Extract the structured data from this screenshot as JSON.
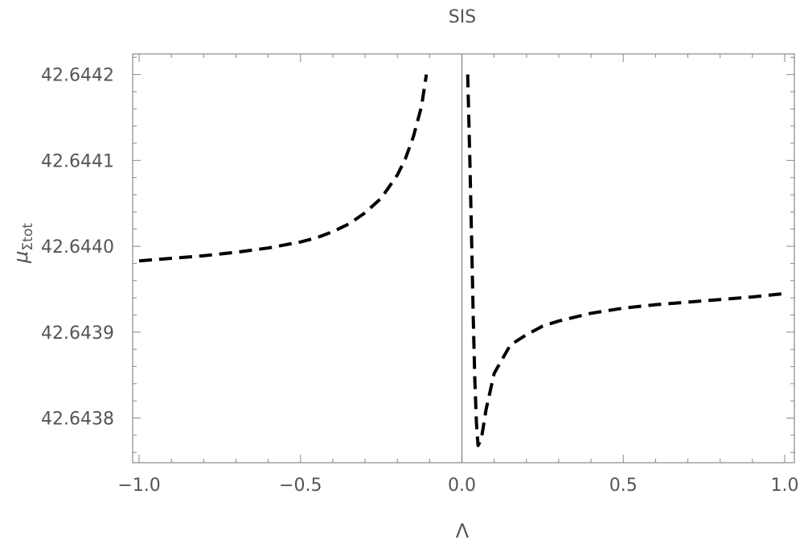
{
  "chart_data": {
    "type": "line",
    "title": "SIS",
    "xlabel": "Λ",
    "ylabel": {
      "main": "μ",
      "subscript": "Σtot"
    },
    "xlim": [
      -1.02,
      1.03
    ],
    "ylim": [
      42.643748,
      42.644224
    ],
    "x_ticks": {
      "major": [
        -1.0,
        -0.5,
        0.0,
        0.5,
        1.0
      ],
      "labels": [
        "−1.0",
        "−0.5",
        "0.0",
        "0.5",
        "1.0"
      ]
    },
    "y_ticks": {
      "major": [
        42.6438,
        42.6439,
        42.644,
        42.6441,
        42.6442
      ],
      "labels": [
        "42.6438",
        "42.6439",
        "42.6440",
        "42.6441",
        "42.6442"
      ]
    },
    "reference_line": {
      "x": 0.0,
      "color": "#999999"
    },
    "grid": false,
    "series": [
      {
        "style": "dashed",
        "color": "#000000",
        "segments": [
          [
            [
              -1.0,
              42.643983
            ],
            [
              -0.9,
              42.643986
            ],
            [
              -0.8,
              42.643989
            ],
            [
              -0.7,
              42.643993
            ],
            [
              -0.6,
              42.643998
            ],
            [
              -0.5,
              42.644005
            ],
            [
              -0.45,
              42.64401
            ],
            [
              -0.4,
              42.644017
            ],
            [
              -0.35,
              42.644026
            ],
            [
              -0.3,
              42.644039
            ],
            [
              -0.25,
              42.644056
            ],
            [
              -0.2,
              42.644083
            ],
            [
              -0.175,
              42.644102
            ],
            [
              -0.15,
              42.644128
            ],
            [
              -0.125,
              42.644163
            ],
            [
              -0.11,
              42.6442
            ]
          ],
          [
            [
              0.018,
              42.6442
            ],
            [
              0.025,
              42.644095
            ],
            [
              0.03,
              42.64401
            ],
            [
              0.035,
              42.64392
            ],
            [
              0.04,
              42.643845
            ],
            [
              0.045,
              42.643795
            ],
            [
              0.05,
              42.643768
            ],
            [
              0.06,
              42.643775
            ],
            [
              0.075,
              42.64381
            ],
            [
              0.1,
              42.643852
            ],
            [
              0.15,
              42.643885
            ],
            [
              0.2,
              42.643897
            ],
            [
              0.25,
              42.643907
            ],
            [
              0.3,
              42.643913
            ],
            [
              0.4,
              42.643922
            ],
            [
              0.5,
              42.643928
            ],
            [
              0.6,
              42.643932
            ],
            [
              0.7,
              42.643935
            ],
            [
              0.8,
              42.643938
            ],
            [
              0.9,
              42.643941
            ],
            [
              1.0,
              42.643945
            ]
          ]
        ]
      }
    ]
  }
}
